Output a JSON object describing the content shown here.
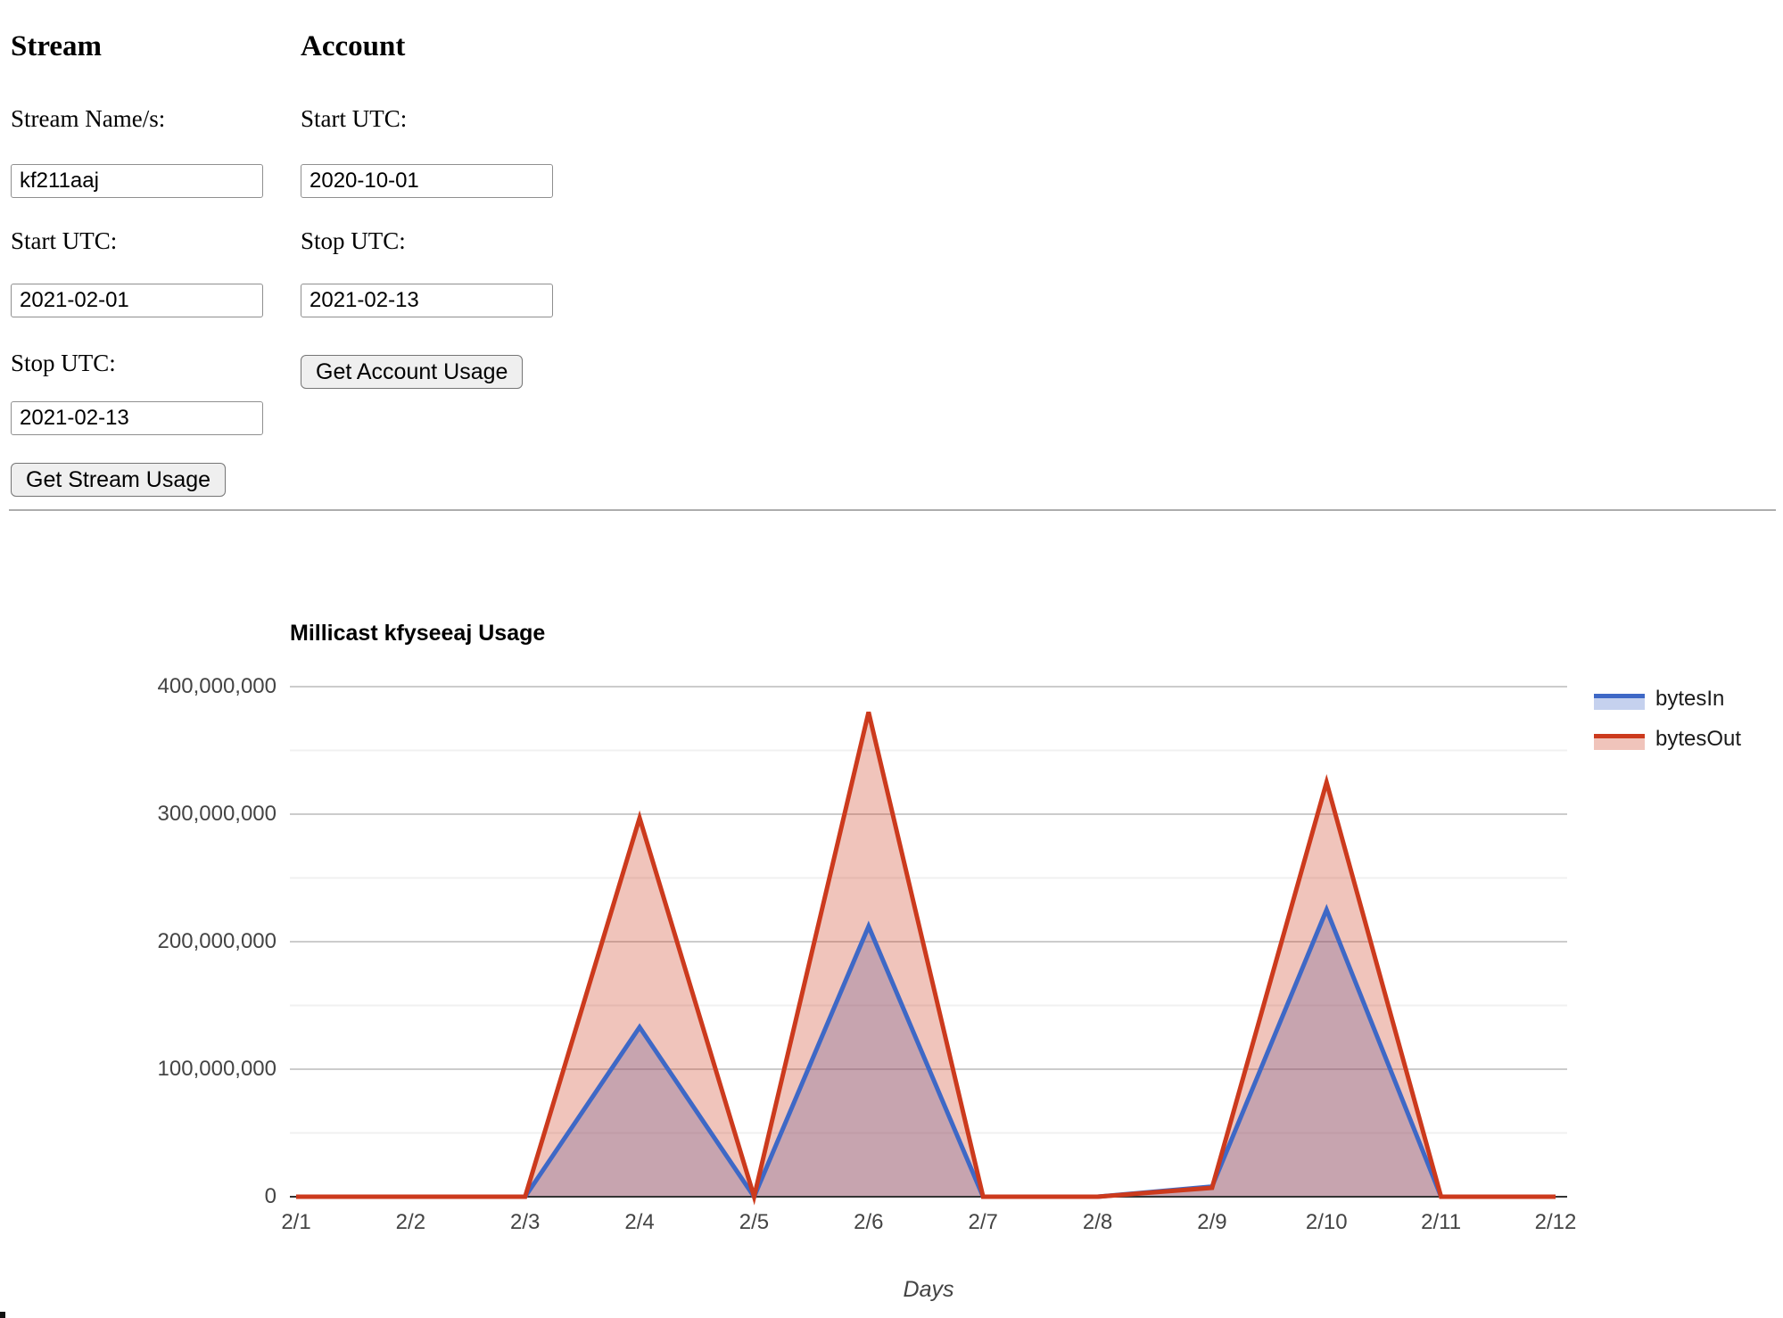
{
  "form": {
    "stream": {
      "heading": "Stream",
      "name_label": "Stream Name/s:",
      "name_value": "kf211aaj",
      "start_label": "Start UTC:",
      "start_value": "2021-02-01",
      "stop_label": "Stop UTC:",
      "stop_value": "2021-02-13",
      "button_label": "Get Stream Usage"
    },
    "account": {
      "heading": "Account",
      "start_label": "Start UTC:",
      "start_value": "2020-10-01",
      "stop_label": "Stop UTC:",
      "stop_value": "2021-02-13",
      "button_label": "Get Account Usage"
    }
  },
  "chart_data": {
    "type": "area",
    "title": "Millicast kfyseeaj Usage",
    "xlabel": "Days",
    "ylabel": "",
    "categories": [
      "2/1",
      "2/2",
      "2/3",
      "2/4",
      "2/5",
      "2/6",
      "2/7",
      "2/8",
      "2/9",
      "2/10",
      "2/11",
      "2/12"
    ],
    "series": [
      {
        "name": "bytesIn",
        "color": "#3E68C6",
        "values": [
          0,
          0,
          0,
          133000000,
          0,
          212000000,
          0,
          0,
          8000000,
          225000000,
          0,
          0
        ]
      },
      {
        "name": "bytesOut",
        "color": "#CC3A1D",
        "values": [
          0,
          0,
          0,
          297000000,
          0,
          380000000,
          0,
          0,
          7000000,
          325000000,
          0,
          0
        ]
      }
    ],
    "ylim": [
      0,
      400000000
    ],
    "y_major_step": 100000000,
    "y_minor_step": 50000000,
    "grid": true,
    "legend_position": "right",
    "area_opacity": 0.3,
    "colors": {
      "major_gridline": "#cccccc",
      "minor_gridline": "#f0f0f0",
      "baseline": "#333333",
      "tick_text": "#444444"
    }
  }
}
